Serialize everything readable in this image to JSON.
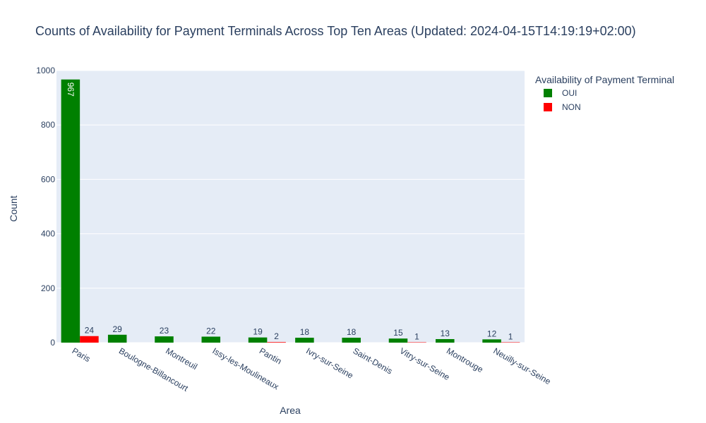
{
  "chart_data": {
    "type": "bar",
    "title": "Counts of Availability for Payment Terminals Across Top Ten Areas (Updated: 2024-04-15T14:19:19+02:00)",
    "xlabel": "Area",
    "ylabel": "Count",
    "ylim": [
      0,
      1000
    ],
    "yticks": [
      0,
      200,
      400,
      600,
      800,
      1000
    ],
    "grid": true,
    "legend_title": "Availability of Payment Terminal",
    "legend_placement": "top-right",
    "barmode": "group",
    "categories": [
      "Paris",
      "Boulogne-Billancourt",
      "Montreuil",
      "Issy-les-Moulineaux",
      "Pantin",
      "Ivry-sur-Seine",
      "Saint-Denis",
      "Vitry-sur-Seine",
      "Montrouge",
      "Neuilly-sur-Seine"
    ],
    "series": [
      {
        "name": "OUI",
        "color": "#008000",
        "values": [
          967,
          29,
          23,
          22,
          19,
          18,
          18,
          15,
          13,
          12
        ]
      },
      {
        "name": "NON",
        "color": "#ff0000",
        "values": [
          24,
          null,
          null,
          null,
          2,
          null,
          null,
          1,
          null,
          1
        ]
      }
    ],
    "plot_background": "#e5ecf6",
    "grid_color": "#ffffff"
  }
}
